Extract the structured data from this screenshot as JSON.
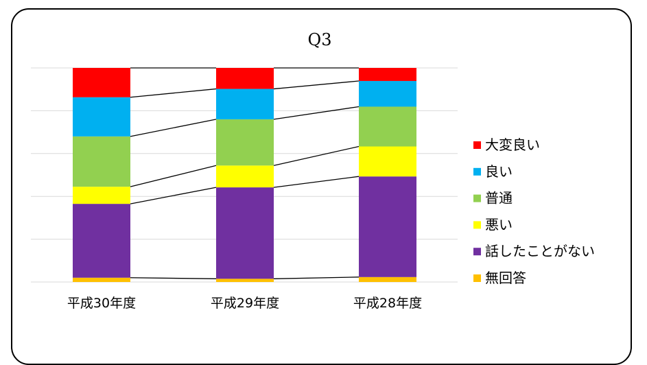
{
  "chart_data": {
    "type": "bar",
    "stacked": true,
    "normalized": true,
    "title": "Q3",
    "categories": [
      "平成30年度",
      "平成29年度",
      "平成28年度"
    ],
    "series": [
      {
        "name": "無回答",
        "color": "#FFC000",
        "values": [
          0.02,
          0.015,
          0.023
        ]
      },
      {
        "name": "話したことがない",
        "color": "#7030A0",
        "values": [
          0.345,
          0.427,
          0.47
        ]
      },
      {
        "name": "悪い",
        "color": "#FFFF00",
        "values": [
          0.08,
          0.102,
          0.14
        ]
      },
      {
        "name": "普通",
        "color": "#92D050",
        "values": [
          0.235,
          0.216,
          0.186
        ]
      },
      {
        "name": "良い",
        "color": "#00B0F0",
        "values": [
          0.183,
          0.142,
          0.12
        ]
      },
      {
        "name": "大変良い",
        "color": "#FF0000",
        "values": [
          0.137,
          0.098,
          0.061
        ]
      }
    ],
    "legend_order": [
      "大変良い",
      "良い",
      "普通",
      "悪い",
      "話したことがない",
      "無回答"
    ],
    "ylim": [
      0,
      1
    ],
    "grid": true,
    "legend_position": "right",
    "series_lines": true
  }
}
